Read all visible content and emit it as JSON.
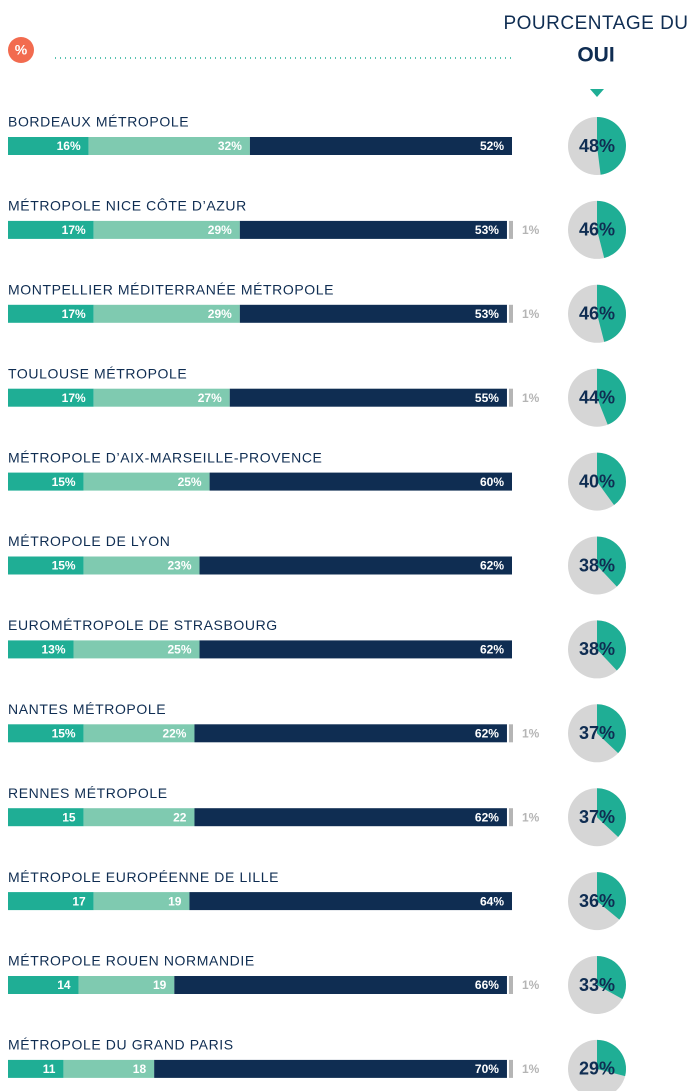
{
  "chart_data": [
    {
      "type": "bar",
      "stacked": true,
      "orientation": "horizontal",
      "badge": "%",
      "categories": [
        "BORDEAUX MÉTROPOLE",
        "MÉTROPOLE NICE CÔTE D’AZUR",
        "MONTPELLIER MÉDITERRANÉE MÉTROPOLE",
        "TOULOUSE MÉTROPOLE",
        "MÉTROPOLE D’AIX-MARSEILLE-PROVENCE",
        "MÉTROPOLE DE LYON",
        "EUROMÉTROPOLE DE STRASBOURG",
        "NANTES MÉTROPOLE",
        "RENNES MÉTROPOLE",
        "MÉTROPOLE EUROPÉENNE DE LILLE",
        "MÉTROPOLE ROUEN NORMANDIE",
        "MÉTROPOLE DU GRAND PARIS"
      ],
      "xlim": [
        0,
        100
      ],
      "series": [
        {
          "color": "#1fae95",
          "values": [
            16,
            17,
            17,
            17,
            15,
            15,
            13,
            15,
            15,
            17,
            14,
            11
          ],
          "value_labels": [
            "16%",
            "17%",
            "17%",
            "17%",
            "15%",
            "15%",
            "13%",
            "15%",
            "15",
            "17",
            "14",
            "11"
          ]
        },
        {
          "color": "#7fcab0",
          "values": [
            32,
            29,
            29,
            27,
            25,
            23,
            25,
            22,
            22,
            19,
            19,
            18
          ],
          "value_labels": [
            "32%",
            "29%",
            "29%",
            "27%",
            "25%",
            "23%",
            "25%",
            "22%",
            "22",
            "19",
            "19",
            "18"
          ]
        },
        {
          "color": "#0f2d52",
          "values": [
            52,
            53,
            53,
            55,
            60,
            62,
            62,
            62,
            62,
            64,
            66,
            70
          ],
          "value_labels": [
            "52%",
            "53%",
            "53%",
            "55%",
            "60%",
            "62%",
            "62%",
            "62%",
            "62%",
            "64%",
            "66%",
            "70%"
          ]
        },
        {
          "color": "#b5b5b5",
          "values": [
            null,
            1,
            1,
            1,
            null,
            null,
            null,
            1,
            1,
            null,
            1,
            1
          ],
          "value_labels": [
            null,
            "1%",
            "1%",
            "1%",
            null,
            null,
            null,
            "1%",
            "1%",
            null,
            "1%",
            "1%"
          ]
        }
      ]
    },
    {
      "type": "pie",
      "title": "POURCENTAGE DU",
      "subtitle": "OUI",
      "colors": [
        "#1fae95",
        "#d6d6d6"
      ],
      "values": [
        48,
        46,
        46,
        44,
        40,
        38,
        38,
        37,
        37,
        36,
        33,
        29
      ],
      "value_labels": [
        "48%",
        "46%",
        "46%",
        "44%",
        "40%",
        "38%",
        "38%",
        "37%",
        "37%",
        "36%",
        "33%",
        "29%"
      ]
    }
  ]
}
